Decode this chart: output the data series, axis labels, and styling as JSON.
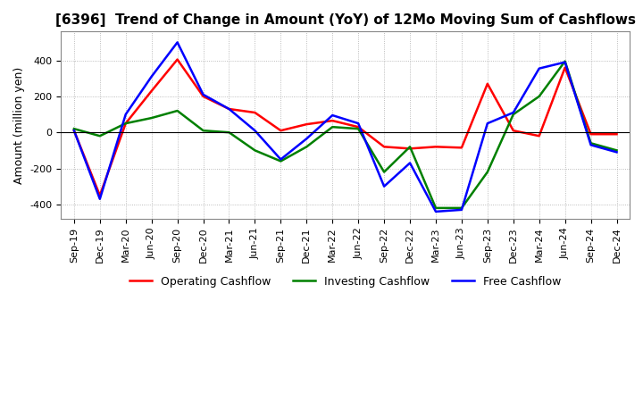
{
  "title": "[6396]  Trend of Change in Amount (YoY) of 12Mo Moving Sum of Cashflows",
  "ylabel": "Amount (million yen)",
  "xlabels": [
    "Sep-19",
    "Dec-19",
    "Mar-20",
    "Jun-20",
    "Sep-20",
    "Dec-20",
    "Mar-21",
    "Jun-21",
    "Sep-21",
    "Dec-21",
    "Mar-22",
    "Jun-22",
    "Sep-22",
    "Dec-22",
    "Mar-23",
    "Jun-23",
    "Sep-23",
    "Dec-23",
    "Mar-24",
    "Jun-24",
    "Sep-24",
    "Dec-24"
  ],
  "operating": [
    10,
    -350,
    50,
    230,
    405,
    200,
    130,
    110,
    10,
    45,
    65,
    30,
    -80,
    -90,
    -80,
    -85,
    270,
    10,
    -20,
    360,
    -10,
    -10
  ],
  "investing": [
    20,
    -20,
    50,
    80,
    120,
    10,
    0,
    -100,
    -160,
    -80,
    30,
    20,
    -220,
    -80,
    -420,
    -420,
    -220,
    100,
    200,
    395,
    -60,
    -100
  ],
  "free": [
    10,
    -370,
    100,
    310,
    500,
    210,
    130,
    10,
    -150,
    -35,
    95,
    50,
    -300,
    -170,
    -440,
    -430,
    50,
    110,
    355,
    390,
    -70,
    -110
  ],
  "ylim": [
    -480,
    560
  ],
  "yticks": [
    -400,
    -200,
    0,
    200,
    400
  ],
  "colors": {
    "operating": "#ff0000",
    "investing": "#008000",
    "free": "#0000ff"
  },
  "legend_labels": [
    "Operating Cashflow",
    "Investing Cashflow",
    "Free Cashflow"
  ],
  "background": "#ffffff",
  "grid_color": "#aaaaaa",
  "title_fontsize": 11,
  "label_fontsize": 9,
  "tick_fontsize": 8
}
